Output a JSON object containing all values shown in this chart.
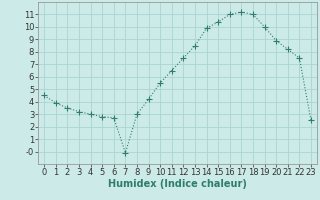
{
  "x": [
    0,
    1,
    2,
    3,
    4,
    5,
    6,
    7,
    8,
    9,
    10,
    11,
    12,
    13,
    14,
    15,
    16,
    17,
    18,
    19,
    20,
    21,
    22,
    23
  ],
  "y": [
    4.5,
    3.9,
    3.5,
    3.2,
    3.0,
    2.8,
    2.7,
    -0.1,
    3.0,
    4.2,
    5.5,
    6.5,
    7.5,
    8.5,
    9.9,
    10.4,
    11.0,
    11.2,
    11.0,
    10.0,
    8.9,
    8.2,
    7.5,
    2.5
  ],
  "xlim": [
    -0.5,
    23.5
  ],
  "ylim": [
    -1,
    12
  ],
  "yticks": [
    0,
    1,
    2,
    3,
    4,
    5,
    6,
    7,
    8,
    9,
    10,
    11
  ],
  "ytick_labels": [
    "-0",
    "1",
    "2",
    "3",
    "4",
    "5",
    "6",
    "7",
    "8",
    "9",
    "10",
    "11"
  ],
  "xticks": [
    0,
    1,
    2,
    3,
    4,
    5,
    6,
    7,
    8,
    9,
    10,
    11,
    12,
    13,
    14,
    15,
    16,
    17,
    18,
    19,
    20,
    21,
    22,
    23
  ],
  "xlabel": "Humidex (Indice chaleur)",
  "line_color": "#2e7d6e",
  "marker": "+",
  "background_color": "#cceae7",
  "grid_color": "#aad4d0",
  "xlabel_fontsize": 7,
  "tick_fontsize": 6,
  "line_width": 0.8,
  "marker_size": 4,
  "marker_edge_width": 0.8
}
